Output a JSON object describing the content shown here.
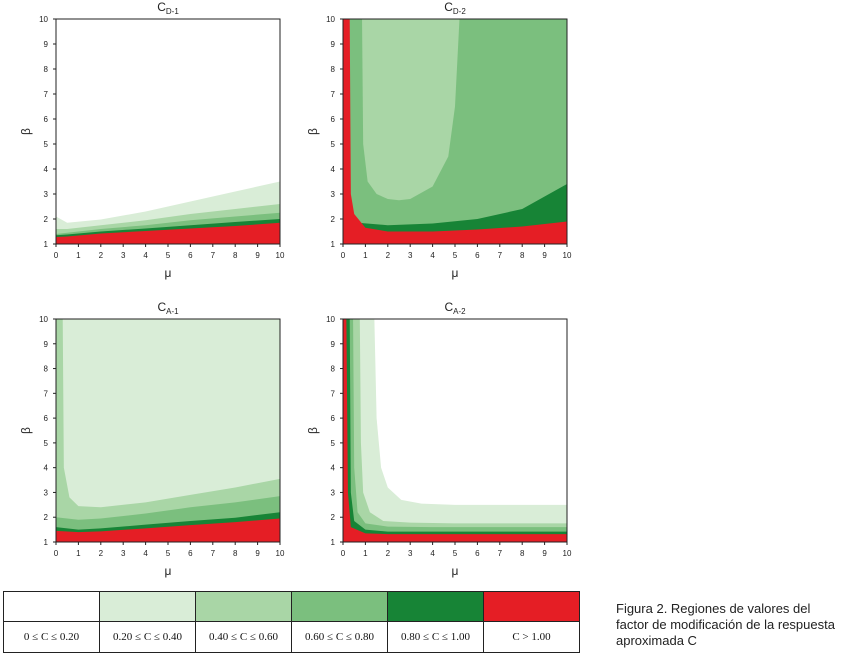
{
  "colors": {
    "c0": "#ffffff",
    "c1": "#d9edd7",
    "c2": "#a9d6a6",
    "c3": "#7bbf7e",
    "c4": "#178436",
    "c5": "#e51e25"
  },
  "legend": {
    "items": [
      {
        "label": "0 ≤ C ≤ 0.20",
        "color_key": "c0"
      },
      {
        "label": "0.20 ≤ C ≤ 0.40",
        "color_key": "c1"
      },
      {
        "label": "0.40 ≤ C ≤ 0.60",
        "color_key": "c2"
      },
      {
        "label": "0.60 ≤ C ≤ 0.80",
        "color_key": "c3"
      },
      {
        "label": "0.80 ≤ C ≤ 1.00",
        "color_key": "c4"
      },
      {
        "label": "C > 1.00",
        "color_key": "c5"
      }
    ]
  },
  "caption": {
    "line1": "Figura 2. Regiones de valores del",
    "line2": "factor de modificación de la respuesta",
    "line3": "aproximada C"
  },
  "chart_data": [
    {
      "type": "heatmap",
      "title_main": "C",
      "title_sub": "D-1",
      "xlabel": "μ",
      "ylabel": "β",
      "xlim": [
        0,
        10
      ],
      "ylim": [
        1,
        10
      ],
      "xticks": [
        "0",
        "1",
        "2",
        "3",
        "4",
        "5",
        "6",
        "7",
        "8",
        "9",
        "10"
      ],
      "yticks": [
        "1",
        "2",
        "3",
        "4",
        "5",
        "6",
        "7",
        "8",
        "9",
        "10"
      ],
      "regions": [
        {
          "level": "c1",
          "boundary": [
            [
              0,
              2.1
            ],
            [
              0.5,
              1.85
            ],
            [
              2,
              1.98
            ],
            [
              4,
              2.3
            ],
            [
              6,
              2.7
            ],
            [
              8,
              3.1
            ],
            [
              10,
              3.5
            ]
          ]
        },
        {
          "level": "c2",
          "boundary": [
            [
              0,
              1.6
            ],
            [
              0.5,
              1.6
            ],
            [
              2,
              1.75
            ],
            [
              4,
              1.95
            ],
            [
              6,
              2.2
            ],
            [
              8,
              2.4
            ],
            [
              10,
              2.6
            ]
          ]
        },
        {
          "level": "c3",
          "boundary": [
            [
              0,
              1.4
            ],
            [
              0.5,
              1.45
            ],
            [
              2,
              1.6
            ],
            [
              4,
              1.75
            ],
            [
              6,
              1.95
            ],
            [
              8,
              2.1
            ],
            [
              10,
              2.25
            ]
          ]
        },
        {
          "level": "c4",
          "boundary": [
            [
              0,
              1.35
            ],
            [
              0.5,
              1.38
            ],
            [
              2,
              1.5
            ],
            [
              4,
              1.62
            ],
            [
              6,
              1.75
            ],
            [
              8,
              1.88
            ],
            [
              10,
              2.0
            ]
          ]
        },
        {
          "level": "c5",
          "boundary": [
            [
              0,
              1.28
            ],
            [
              0.5,
              1.3
            ],
            [
              2,
              1.42
            ],
            [
              4,
              1.52
            ],
            [
              6,
              1.62
            ],
            [
              8,
              1.72
            ],
            [
              10,
              1.85
            ]
          ]
        }
      ]
    },
    {
      "type": "heatmap",
      "title_main": "C",
      "title_sub": "D-2",
      "xlabel": "μ",
      "ylabel": "β",
      "xlim": [
        0,
        10
      ],
      "ylim": [
        1,
        10
      ],
      "xticks": [
        "0",
        "1",
        "2",
        "3",
        "4",
        "5",
        "6",
        "7",
        "8",
        "9",
        "10"
      ],
      "yticks": [
        "1",
        "2",
        "3",
        "4",
        "5",
        "6",
        "7",
        "8",
        "9",
        "10"
      ],
      "regions": [
        {
          "level": "c3",
          "boundary": [
            [
              0,
              10
            ],
            [
              10,
              10
            ]
          ]
        },
        {
          "level": "c2",
          "boundary": [
            [
              0.85,
              10
            ],
            [
              0.9,
              5
            ],
            [
              1.1,
              3.5
            ],
            [
              1.5,
              3.0
            ],
            [
              2,
              2.8
            ],
            [
              2.5,
              2.75
            ],
            [
              3,
              2.8
            ],
            [
              4,
              3.3
            ],
            [
              4.7,
              4.5
            ],
            [
              5,
              6.5
            ],
            [
              5.2,
              10
            ]
          ]
        },
        {
          "level": "c4",
          "boundary": [
            [
              0,
              1.9
            ],
            [
              2,
              1.75
            ],
            [
              4,
              1.82
            ],
            [
              6,
              2.0
            ],
            [
              8,
              2.4
            ],
            [
              10,
              3.4
            ]
          ]
        },
        {
          "level": "c5",
          "boundary": [
            [
              0,
              10
            ],
            [
              0.3,
              10
            ],
            [
              0.35,
              3
            ],
            [
              0.5,
              2.2
            ],
            [
              1,
              1.65
            ],
            [
              2,
              1.5
            ],
            [
              4,
              1.5
            ],
            [
              6,
              1.58
            ],
            [
              8,
              1.7
            ],
            [
              10,
              1.9
            ]
          ]
        }
      ]
    },
    {
      "type": "heatmap",
      "title_main": "C",
      "title_sub": "A-1",
      "xlabel": "μ",
      "ylabel": "β",
      "xlim": [
        0,
        10
      ],
      "ylim": [
        1,
        10
      ],
      "xticks": [
        "0",
        "1",
        "2",
        "3",
        "4",
        "5",
        "6",
        "7",
        "8",
        "9",
        "10"
      ],
      "yticks": [
        "1",
        "2",
        "3",
        "4",
        "5",
        "6",
        "7",
        "8",
        "9",
        "10"
      ],
      "regions": [
        {
          "level": "c1",
          "boundary": [
            [
              0,
              10
            ],
            [
              10,
              10
            ]
          ]
        },
        {
          "level": "c2",
          "boundary": [
            [
              0.3,
              10
            ],
            [
              0.35,
              4
            ],
            [
              0.6,
              2.8
            ],
            [
              1,
              2.45
            ],
            [
              2,
              2.4
            ],
            [
              4,
              2.6
            ],
            [
              6,
              2.9
            ],
            [
              8,
              3.2
            ],
            [
              10,
              3.55
            ]
          ]
        },
        {
          "level": "c3",
          "boundary": [
            [
              0,
              2.0
            ],
            [
              1,
              1.9
            ],
            [
              2,
              1.95
            ],
            [
              4,
              2.15
            ],
            [
              6,
              2.4
            ],
            [
              8,
              2.6
            ],
            [
              10,
              2.85
            ]
          ]
        },
        {
          "level": "c4",
          "boundary": [
            [
              0,
              1.6
            ],
            [
              1,
              1.5
            ],
            [
              2,
              1.55
            ],
            [
              4,
              1.7
            ],
            [
              6,
              1.85
            ],
            [
              8,
              1.98
            ],
            [
              10,
              2.2
            ]
          ]
        },
        {
          "level": "c5",
          "boundary": [
            [
              0,
              1.45
            ],
            [
              1,
              1.4
            ],
            [
              2,
              1.43
            ],
            [
              4,
              1.55
            ],
            [
              6,
              1.68
            ],
            [
              8,
              1.8
            ],
            [
              10,
              1.95
            ]
          ]
        }
      ]
    },
    {
      "type": "heatmap",
      "title_main": "C",
      "title_sub": "A-2",
      "xlabel": "μ",
      "ylabel": "β",
      "xlim": [
        0,
        10
      ],
      "ylim": [
        1,
        10
      ],
      "xticks": [
        "0",
        "1",
        "2",
        "3",
        "4",
        "5",
        "6",
        "7",
        "8",
        "9",
        "10"
      ],
      "yticks": [
        "1",
        "2",
        "3",
        "4",
        "5",
        "6",
        "7",
        "8",
        "9",
        "10"
      ],
      "regions": [
        {
          "level": "c1",
          "boundary": [
            [
              1.4,
              10
            ],
            [
              1.5,
              6
            ],
            [
              1.7,
              4
            ],
            [
              2,
              3.2
            ],
            [
              2.6,
              2.7
            ],
            [
              3.5,
              2.55
            ],
            [
              5,
              2.5
            ],
            [
              10,
              2.5
            ]
          ]
        },
        {
          "level": "c2",
          "boundary": [
            [
              0.75,
              10
            ],
            [
              0.8,
              5
            ],
            [
              0.9,
              3
            ],
            [
              1.2,
              2.2
            ],
            [
              1.8,
              1.85
            ],
            [
              3,
              1.78
            ],
            [
              5,
              1.75
            ],
            [
              10,
              1.75
            ]
          ]
        },
        {
          "level": "c3",
          "boundary": [
            [
              0.45,
              10
            ],
            [
              0.5,
              4
            ],
            [
              0.65,
              2.2
            ],
            [
              1,
              1.75
            ],
            [
              2,
              1.62
            ],
            [
              4,
              1.6
            ],
            [
              10,
              1.6
            ]
          ]
        },
        {
          "level": "c4",
          "boundary": [
            [
              0.3,
              10
            ],
            [
              0.35,
              3
            ],
            [
              0.5,
              1.85
            ],
            [
              1,
              1.5
            ],
            [
              2,
              1.42
            ],
            [
              10,
              1.42
            ]
          ]
        },
        {
          "level": "c5",
          "boundary": [
            [
              0.15,
              10
            ],
            [
              0.22,
              3
            ],
            [
              0.35,
              1.6
            ],
            [
              1,
              1.35
            ],
            [
              2,
              1.32
            ],
            [
              10,
              1.32
            ]
          ]
        }
      ]
    }
  ]
}
